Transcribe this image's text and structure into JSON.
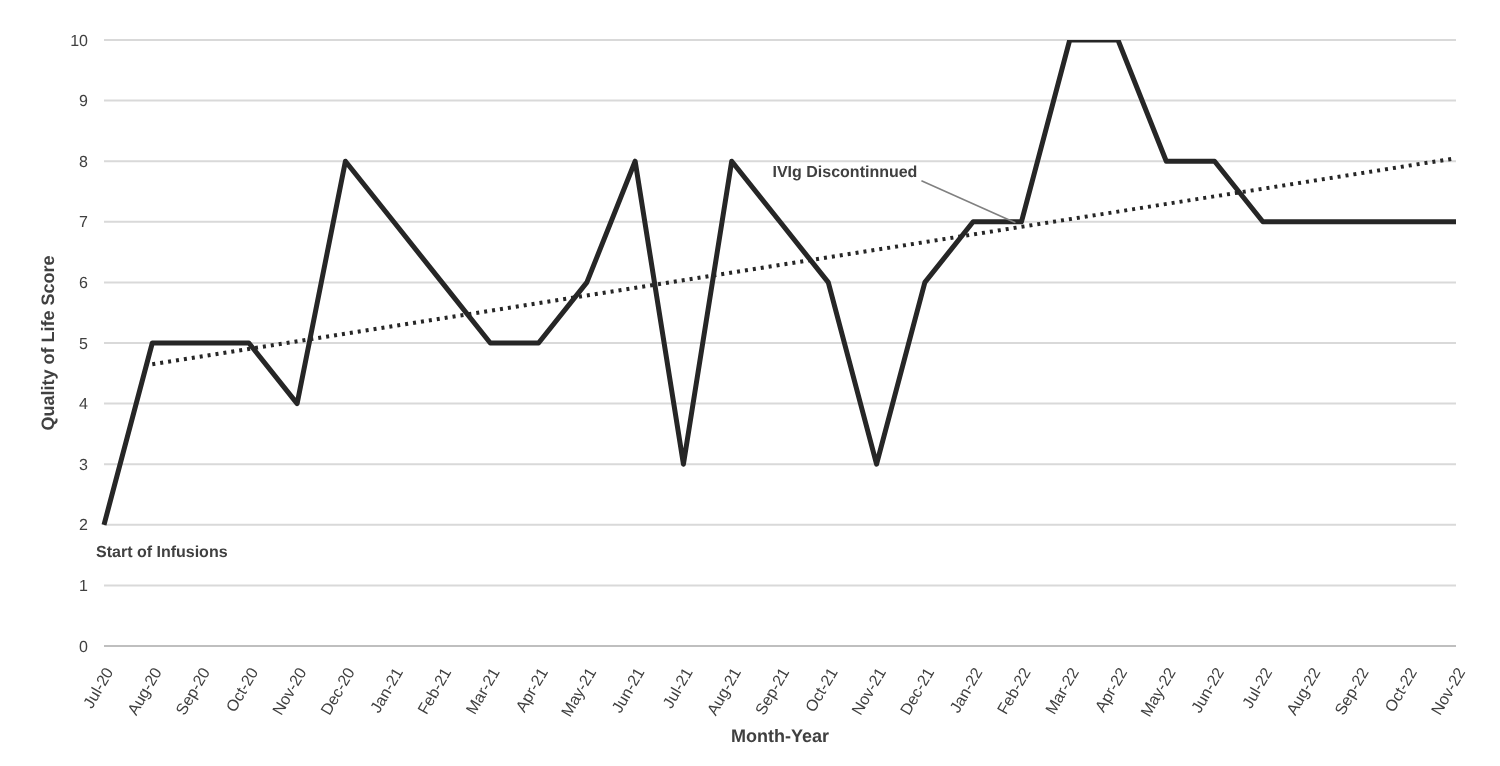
{
  "chart_data": {
    "type": "line",
    "xlabel": "Month-Year",
    "ylabel": "Quality of Life Score",
    "categories": [
      "Jul-20",
      "Aug-20",
      "Sep-20",
      "Oct-20",
      "Nov-20",
      "Dec-20",
      "Jan-21",
      "Feb-21",
      "Mar-21",
      "Apr-21",
      "May-21",
      "Jun-21",
      "Jul-21",
      "Aug-21",
      "Sep-21",
      "Oct-21",
      "Nov-21",
      "Dec-21",
      "Jan-22",
      "Feb-22",
      "Mar-22",
      "Apr-22",
      "May-22",
      "Jun-22",
      "Jul-22",
      "Aug-22",
      "Sep-22",
      "Oct-22",
      "Nov-22"
    ],
    "series": [
      {
        "color": "#262626",
        "line_style": "solid",
        "values": [
          2,
          5,
          5,
          5,
          4,
          8,
          7,
          6,
          5,
          5,
          6,
          8,
          3,
          8,
          7,
          6,
          3,
          6,
          7,
          7,
          10,
          10,
          8,
          8,
          7,
          7,
          7,
          7,
          7
        ]
      },
      {
        "type": "line",
        "color": "#262626",
        "line_style": "dotted",
        "x": [
          "Aug-20",
          "Nov-22"
        ],
        "values": [
          4.65,
          8.05
        ]
      }
    ],
    "ylim": [
      0,
      10
    ],
    "yticks": [
      0,
      1,
      2,
      3,
      4,
      5,
      6,
      7,
      8,
      9,
      10
    ],
    "grid": "y",
    "marker": "none",
    "annotations": [
      {
        "text": "Start of Infusions",
        "x": "Jul-20",
        "y": 2
      },
      {
        "text": "IVIg Discontinnued",
        "x": "Feb-22",
        "y": 6.95
      }
    ]
  }
}
